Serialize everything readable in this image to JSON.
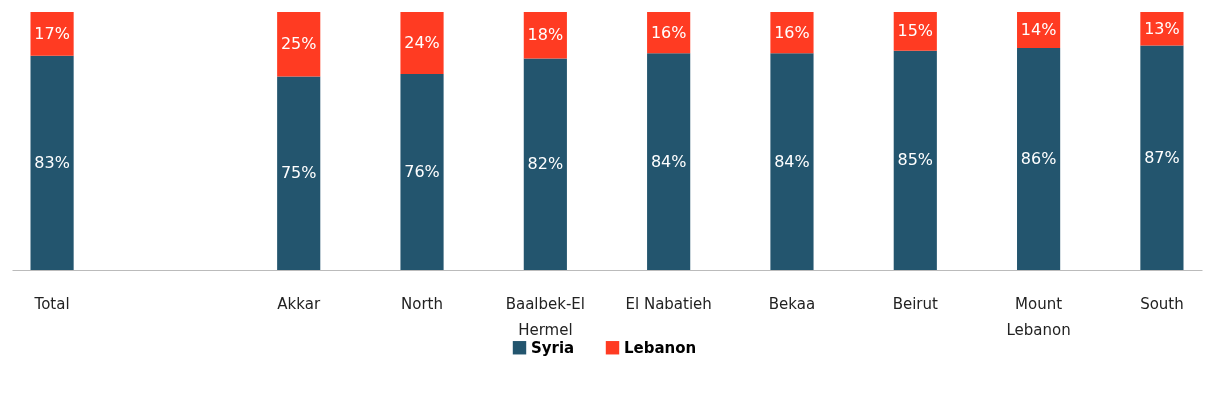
{
  "chart_data": {
    "type": "bar",
    "stacked": true,
    "categories": [
      "Total",
      null,
      "Akkar",
      "North",
      "Baalbek-El Hermel",
      "El Nabatieh",
      "Bekaa",
      "Beirut",
      "Mount Lebanon",
      "South"
    ],
    "series": [
      {
        "name": "Syria",
        "color": "#23556e",
        "values": [
          83,
          null,
          75,
          76,
          82,
          84,
          84,
          85,
          86,
          87
        ],
        "value_labels": [
          "83%",
          null,
          "75%",
          "76%",
          "82%",
          "84%",
          "84%",
          "85%",
          "86%",
          "87%"
        ]
      },
      {
        "name": "Lebanon",
        "color": "#ff3b22",
        "values": [
          17,
          null,
          25,
          24,
          18,
          16,
          16,
          15,
          14,
          13
        ],
        "value_labels": [
          "17%",
          null,
          "25%",
          "24%",
          "18%",
          "16%",
          "16%",
          "15%",
          "14%",
          "13%"
        ]
      }
    ],
    "ylim": [
      0,
      100
    ],
    "tick_labels": "x",
    "legend": "bottom"
  }
}
